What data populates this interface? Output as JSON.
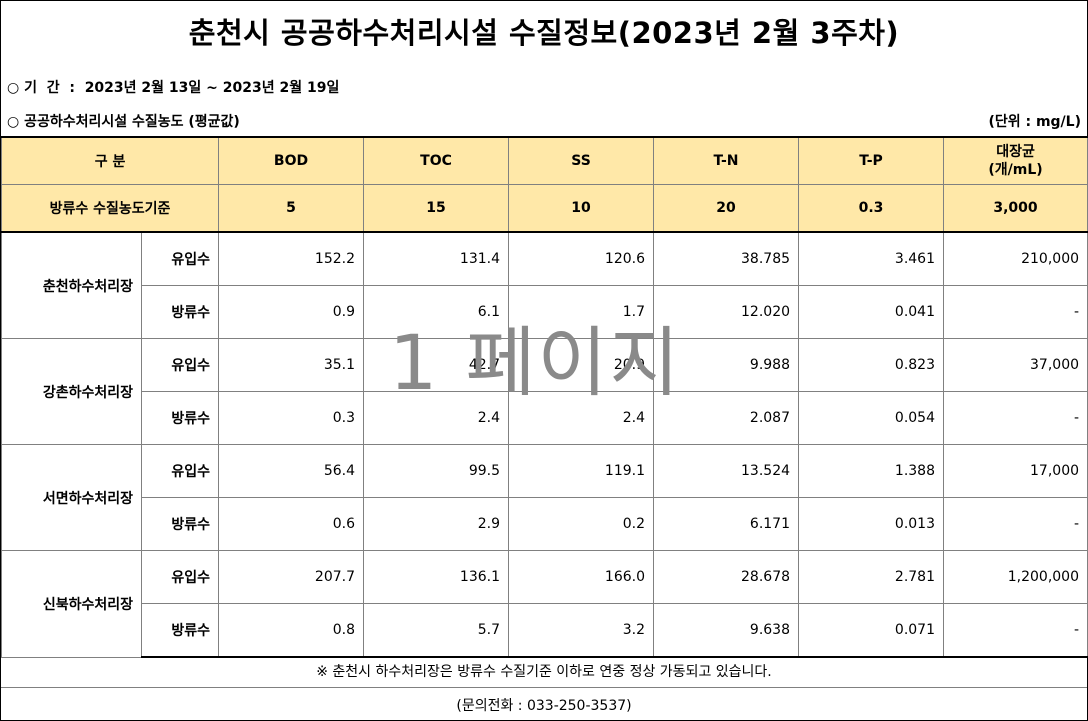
{
  "title": "춘천시 공공하수처리시설 수질정보(2023년 2월 3주차)",
  "period_line": "○ 기  간  :  2023년 2월 13일 ~ 2023년 2월 19일",
  "section_line": "○ 공공하수처리시설 수질농도 (평균값)",
  "unit": "(단위 : mg/L)",
  "header": {
    "category": "구  분",
    "bod": "BOD",
    "toc": "TOC",
    "ss": "SS",
    "tn": "T-N",
    "tp": "T-P",
    "coliform_line1": "대장균",
    "coliform_line2": "(개/mL)"
  },
  "standard": {
    "label": "방류수 수질농도기준",
    "bod": "5",
    "toc": "15",
    "ss": "10",
    "tn": "20",
    "tp": "0.3",
    "coliform": "3,000"
  },
  "plants": [
    {
      "name": "춘천하수처리장",
      "influent": {
        "type": "유입수",
        "bod": "152.2",
        "toc": "131.4",
        "ss": "120.6",
        "tn": "38.785",
        "tp": "3.461",
        "coliform": "210,000"
      },
      "effluent": {
        "type": "방류수",
        "bod": "0.9",
        "toc": "6.1",
        "ss": "1.7",
        "tn": "12.020",
        "tp": "0.041",
        "coliform": "-"
      }
    },
    {
      "name": "강촌하수처리장",
      "influent": {
        "type": "유입수",
        "bod": "35.1",
        "toc": "42.7",
        "ss": "20.9",
        "tn": "9.988",
        "tp": "0.823",
        "coliform": "37,000"
      },
      "effluent": {
        "type": "방류수",
        "bod": "0.3",
        "toc": "2.4",
        "ss": "2.4",
        "tn": "2.087",
        "tp": "0.054",
        "coliform": "-"
      }
    },
    {
      "name": "서면하수처리장",
      "influent": {
        "type": "유입수",
        "bod": "56.4",
        "toc": "99.5",
        "ss": "119.1",
        "tn": "13.524",
        "tp": "1.388",
        "coliform": "17,000"
      },
      "effluent": {
        "type": "방류수",
        "bod": "0.6",
        "toc": "2.9",
        "ss": "0.2",
        "tn": "6.171",
        "tp": "0.013",
        "coliform": "-"
      }
    },
    {
      "name": "신북하수처리장",
      "influent": {
        "type": "유입수",
        "bod": "207.7",
        "toc": "136.1",
        "ss": "166.0",
        "tn": "28.678",
        "tp": "2.781",
        "coliform": "1,200,000"
      },
      "effluent": {
        "type": "방류수",
        "bod": "0.8",
        "toc": "5.7",
        "ss": "3.2",
        "tn": "9.638",
        "tp": "0.071",
        "coliform": "-"
      }
    }
  ],
  "footer_note": "※ 춘천시 하수처리장은 방류수 수질기준 이하로 연중 정상 가동되고 있습니다.",
  "contact": "(문의전화 : 033-250-3537)",
  "watermark": "1 페이지"
}
